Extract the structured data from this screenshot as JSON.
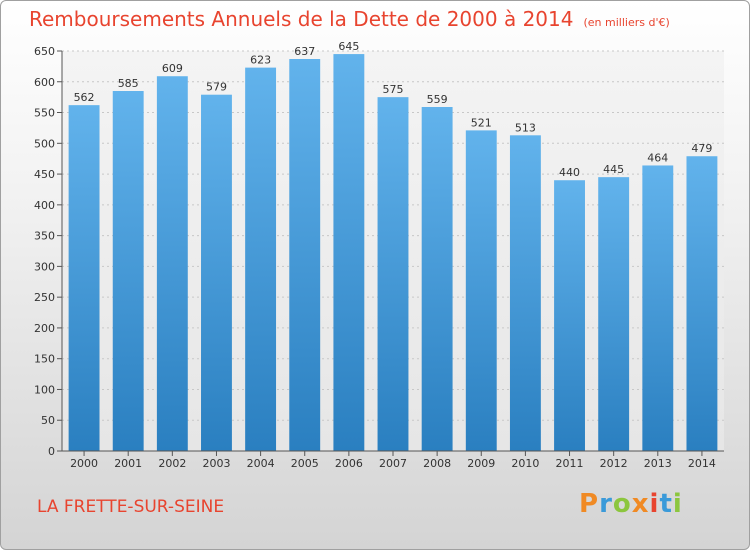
{
  "header": {
    "title": "Remboursements Annuels de la Dette de 2000 à 2014",
    "subtitle": "(en milliers d'€)"
  },
  "footer": {
    "city": "LA FRETTE-SUR-SEINE",
    "logo": "Proxiti"
  },
  "colors": {
    "title": "#e8442f",
    "bar_top": "#62b3ec",
    "bar_bottom": "#2a7fc0",
    "logo": [
      "#f08a24",
      "#3a9ad9",
      "#8cc63e",
      "#f08a24",
      "#e8442f",
      "#3a9ad9",
      "#8cc63e"
    ]
  },
  "chart_data": {
    "type": "bar",
    "title": "Remboursements Annuels de la Dette de 2000 à 2014",
    "subtitle": "(en milliers d'€)",
    "xlabel": "",
    "ylabel": "",
    "categories": [
      "2000",
      "2001",
      "2002",
      "2003",
      "2004",
      "2005",
      "2006",
      "2007",
      "2008",
      "2009",
      "2010",
      "2011",
      "2012",
      "2013",
      "2014"
    ],
    "values": [
      562,
      585,
      609,
      579,
      623,
      637,
      645,
      575,
      559,
      521,
      513,
      440,
      445,
      464,
      479
    ],
    "ylim": [
      0,
      650
    ],
    "yticks": [
      0,
      50,
      100,
      150,
      200,
      250,
      300,
      350,
      400,
      450,
      500,
      550,
      600,
      650
    ],
    "grid": true,
    "data_labels": true
  }
}
